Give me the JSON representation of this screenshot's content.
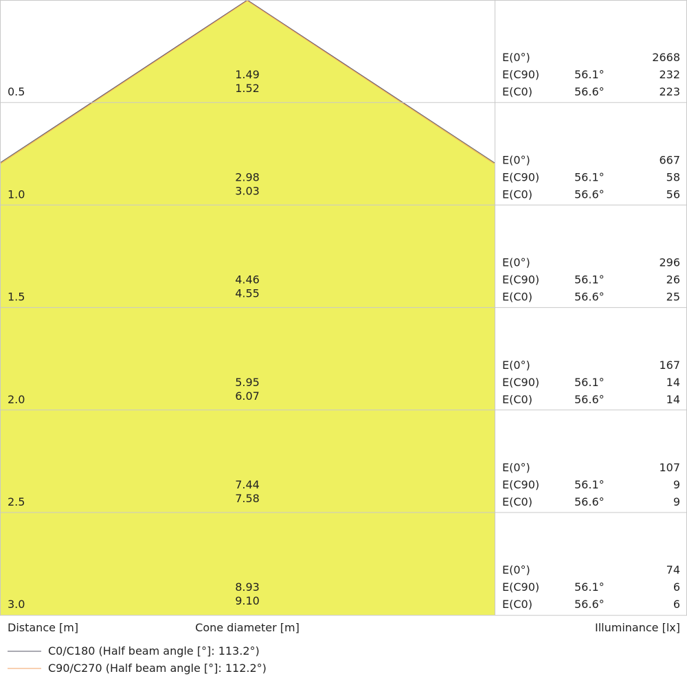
{
  "chart_data": {
    "type": "cone-diagram",
    "distances": [
      0.5,
      1.0,
      1.5,
      2.0,
      2.5,
      3.0
    ],
    "cone_diameter_c0": [
      1.49,
      2.98,
      4.46,
      5.95,
      7.44,
      8.93
    ],
    "cone_diameter_c90": [
      1.52,
      3.03,
      4.55,
      6.07,
      7.58,
      9.1
    ],
    "illuminance": [
      {
        "e0": 2668,
        "ec90": 232,
        "ec0": 223
      },
      {
        "e0": 667,
        "ec90": 58,
        "ec0": 56
      },
      {
        "e0": 296,
        "ec90": 26,
        "ec0": 25
      },
      {
        "e0": 167,
        "ec90": 14,
        "ec0": 14
      },
      {
        "e0": 107,
        "ec90": 9,
        "ec0": 9
      },
      {
        "e0": 74,
        "ec90": 6,
        "ec0": 6
      }
    ],
    "row_labels": {
      "e0": "E(0°)",
      "ec90": "E(C90)",
      "ec0": "E(C0)"
    },
    "angle_c90": "56.1°",
    "angle_c0": "56.6°",
    "xlabel_distance": "Distance [m]",
    "xlabel_cone": "Cone diameter [m]",
    "xlabel_illuminance": "Illuminance [lx]",
    "legend": [
      {
        "name": "C0/C180 (Half beam angle [°]: 113.2°)",
        "color": "#555566"
      },
      {
        "name": "C90/C270 (Half beam angle [°]: 112.2°)",
        "color": "#f0a060"
      }
    ],
    "fill_color": "#eef060",
    "grid_color": "#c8c8c8"
  }
}
